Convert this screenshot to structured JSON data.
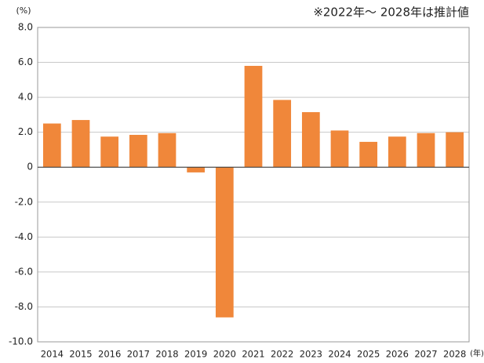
{
  "chart_data": {
    "type": "bar",
    "y_unit_label": "(%)",
    "x_unit_label": "(年)",
    "annotation": "※2022年～ 2028年は推計値",
    "categories": [
      "2014",
      "2015",
      "2016",
      "2017",
      "2018",
      "2019",
      "2020",
      "2021",
      "2022",
      "2023",
      "2024",
      "2025",
      "2026",
      "2027",
      "2028"
    ],
    "values": [
      2.5,
      2.7,
      1.75,
      1.85,
      1.95,
      -0.3,
      -8.6,
      5.8,
      3.85,
      3.15,
      2.1,
      1.45,
      1.75,
      1.95,
      2.0
    ],
    "color": "#f0873a",
    "ylim": [
      -10,
      8
    ],
    "yticks": [
      {
        "value": -10,
        "label": "-10.0"
      },
      {
        "value": -8,
        "label": "-8.0"
      },
      {
        "value": -6,
        "label": "-6.0"
      },
      {
        "value": -4,
        "label": "-4.0"
      },
      {
        "value": -2,
        "label": "-2.0"
      },
      0,
      {
        "value": 2,
        "label": "2.0"
      },
      {
        "value": 4,
        "label": "4.0"
      },
      {
        "value": 6,
        "label": "6.0"
      },
      {
        "value": 8,
        "label": "8.0"
      }
    ],
    "grid": true
  }
}
